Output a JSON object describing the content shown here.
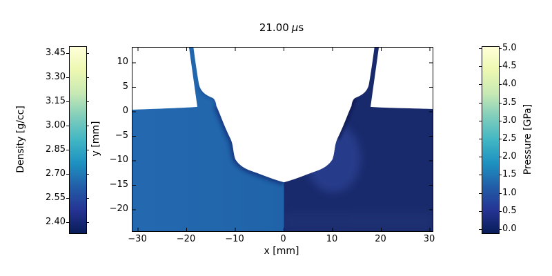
{
  "title": {
    "time_value": "21.00",
    "mu_symbol": "μ",
    "unit_suffix": "s"
  },
  "axes": {
    "xlabel": "x [mm]",
    "ylabel": "y [mm]",
    "x_ticks": [
      "−30",
      "−20",
      "−10",
      "0",
      "10",
      "20",
      "30"
    ],
    "y_ticks": [
      "10",
      "5",
      "0",
      "−5",
      "−10",
      "−15",
      "−20"
    ]
  },
  "colorbars": {
    "density": {
      "label": "Density [g/cc]",
      "ticks": [
        "3.45",
        "3.30",
        "3.15",
        "3.00",
        "2.85",
        "2.70",
        "2.55",
        "2.40"
      ]
    },
    "pressure": {
      "label": "Pressure [GPa]",
      "ticks": [
        "5.0",
        "4.5",
        "4.0",
        "3.5",
        "3.0",
        "2.5",
        "2.0",
        "1.5",
        "1.0",
        "0.5",
        "0.0"
      ]
    }
  },
  "colors": {
    "colormap_bottom_to_top": [
      "#081d58",
      "#253494",
      "#225ea8",
      "#1d91c0",
      "#41b6c4",
      "#7fcdbb",
      "#c7e9b4",
      "#edf8b1",
      "#ffffd9"
    ],
    "density_bulk_fill_left": "#2469b0",
    "density_bulk_fill_near_seam": "#2063a8",
    "density_cavity_edge_band": "#15317a",
    "pressure_bulk_fill": "#192a6c",
    "pressure_light_patch": "#2c4090",
    "pressure_bottom_band": "#223577",
    "pressure_shoulder_dark_band": "#0e1948",
    "axis_color": "#000000",
    "background": "#ffffff"
  },
  "chart_data": {
    "type": "heatmap",
    "title": "21.00 μs",
    "time_us": 21.0,
    "xlabel": "x [mm]",
    "ylabel": "y [mm]",
    "xlim": [
      -31,
      31
    ],
    "ylim": [
      -24.4,
      13.1
    ],
    "x_tick_values": [
      -30,
      -20,
      -10,
      0,
      10,
      20,
      30
    ],
    "y_tick_values": [
      10,
      5,
      0,
      -5,
      -10,
      -15,
      -20
    ],
    "colormap": "YlGnBu_r",
    "grid": false,
    "fields": [
      {
        "name": "Density",
        "units": "g/cc",
        "shown_region": "x < 0",
        "colorbar_range": [
          2.4,
          3.45
        ],
        "colorbar_tick_step": 0.15,
        "approx_bulk_value": 2.72,
        "approx_cavity_edge_value": 2.52
      },
      {
        "name": "Pressure",
        "units": "GPa",
        "shown_region": "x > 0",
        "colorbar_range": [
          0.0,
          5.0
        ],
        "colorbar_tick_step": 0.5,
        "approx_bulk_value": 0.45,
        "approx_light_patch_value": 0.85
      }
    ],
    "free_surface_y_mm": 0.5,
    "cavity_tip_mm": [
      0,
      -14.4
    ],
    "cavity_boundary_mm": [
      [
        -14,
        2
      ],
      [
        -12.4,
        -2.7
      ],
      [
        -11,
        -5.5
      ],
      [
        -10,
        -9.7
      ],
      [
        -6.7,
        -12.1
      ],
      [
        0,
        -14.4
      ],
      [
        6.7,
        -12.1
      ],
      [
        10,
        -9.7
      ],
      [
        11,
        -5.5
      ],
      [
        12.4,
        -2.7
      ],
      [
        14,
        2
      ]
    ],
    "jet_top_exit_x_mm": [
      -19.2,
      19.2
    ],
    "jet_base_x_mm": [
      -17.8,
      17.8
    ]
  }
}
